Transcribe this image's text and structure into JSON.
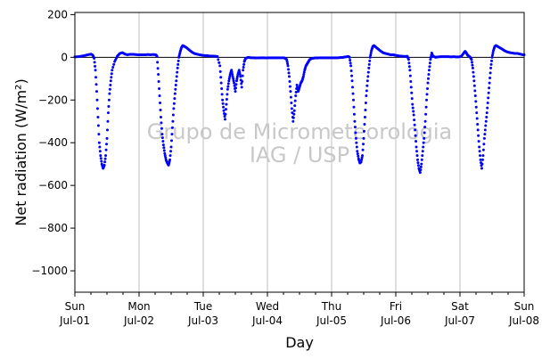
{
  "chart_data": {
    "type": "scatter",
    "xlabel": "Day",
    "ylabel": "Net radiation (W/m²)",
    "x_range_days": [
      0,
      7
    ],
    "ylim": [
      -1100,
      210
    ],
    "yticks": [
      200,
      0,
      -200,
      -400,
      -600,
      -800,
      -1000
    ],
    "ytick_labels": [
      "200",
      "0",
      "−200",
      "−400",
      "−600",
      "−800",
      "−1000"
    ],
    "xticks": [
      {
        "day": 0,
        "line1": "Sun",
        "line2": "Jul-01"
      },
      {
        "day": 1,
        "line1": "Mon",
        "line2": "Jul-02"
      },
      {
        "day": 2,
        "line1": "Tue",
        "line2": "Jul-03"
      },
      {
        "day": 3,
        "line1": "Wed",
        "line2": "Jul-04"
      },
      {
        "day": 4,
        "line1": "Thu",
        "line2": "Jul-05"
      },
      {
        "day": 5,
        "line1": "Fri",
        "line2": "Jul-06"
      },
      {
        "day": 6,
        "line1": "Sat",
        "line2": "Jul-07"
      },
      {
        "day": 7,
        "line1": "Sun",
        "line2": "Jul-08"
      }
    ],
    "grid": "vertical",
    "zero_line": true,
    "marker_color": "#0000ff",
    "watermark": [
      "Grupo de Micrometeorologia",
      "IAG / USP"
    ],
    "series": [
      {
        "points": [
          [
            0.0,
            2
          ],
          [
            0.05,
            3
          ],
          [
            0.1,
            5
          ],
          [
            0.15,
            8
          ],
          [
            0.2,
            12
          ],
          [
            0.25,
            15
          ],
          [
            0.28,
            10
          ],
          [
            0.3,
            -5
          ],
          [
            0.32,
            -60
          ],
          [
            0.34,
            -160
          ],
          [
            0.36,
            -280
          ],
          [
            0.38,
            -400
          ],
          [
            0.4,
            -460
          ],
          [
            0.42,
            -500
          ],
          [
            0.44,
            -520
          ],
          [
            0.46,
            -505
          ],
          [
            0.48,
            -460
          ],
          [
            0.5,
            -380
          ],
          [
            0.52,
            -260
          ],
          [
            0.54,
            -170
          ],
          [
            0.56,
            -110
          ],
          [
            0.58,
            -60
          ],
          [
            0.62,
            -20
          ],
          [
            0.66,
            5
          ],
          [
            0.7,
            18
          ],
          [
            0.74,
            22
          ],
          [
            0.78,
            15
          ],
          [
            0.82,
            12
          ],
          [
            0.86,
            14
          ],
          [
            0.9,
            14
          ],
          [
            0.94,
            13
          ],
          [
            0.98,
            12
          ],
          [
            1.02,
            12
          ],
          [
            1.06,
            12
          ],
          [
            1.1,
            12
          ],
          [
            1.14,
            13
          ],
          [
            1.18,
            12
          ],
          [
            1.22,
            13
          ],
          [
            1.26,
            12
          ],
          [
            1.28,
            5
          ],
          [
            1.3,
            -80
          ],
          [
            1.32,
            -180
          ],
          [
            1.34,
            -280
          ],
          [
            1.36,
            -360
          ],
          [
            1.38,
            -410
          ],
          [
            1.4,
            -450
          ],
          [
            1.42,
            -480
          ],
          [
            1.44,
            -495
          ],
          [
            1.46,
            -505
          ],
          [
            1.48,
            -480
          ],
          [
            1.5,
            -420
          ],
          [
            1.52,
            -330
          ],
          [
            1.54,
            -240
          ],
          [
            1.56,
            -170
          ],
          [
            1.58,
            -110
          ],
          [
            1.6,
            -50
          ],
          [
            1.62,
            0
          ],
          [
            1.64,
            25
          ],
          [
            1.66,
            45
          ],
          [
            1.68,
            55
          ],
          [
            1.7,
            52
          ],
          [
            1.74,
            45
          ],
          [
            1.78,
            35
          ],
          [
            1.82,
            25
          ],
          [
            1.86,
            18
          ],
          [
            1.9,
            15
          ],
          [
            1.94,
            12
          ],
          [
            1.98,
            10
          ],
          [
            2.02,
            8
          ],
          [
            2.06,
            8
          ],
          [
            2.1,
            6
          ],
          [
            2.14,
            6
          ],
          [
            2.18,
            5
          ],
          [
            2.22,
            4
          ],
          [
            2.26,
            -40
          ],
          [
            2.28,
            -120
          ],
          [
            2.3,
            -200
          ],
          [
            2.32,
            -250
          ],
          [
            2.34,
            -290
          ],
          [
            2.36,
            -220
          ],
          [
            2.38,
            -150
          ],
          [
            2.4,
            -110
          ],
          [
            2.42,
            -80
          ],
          [
            2.44,
            -60
          ],
          [
            2.46,
            -90
          ],
          [
            2.48,
            -120
          ],
          [
            2.5,
            -160
          ],
          [
            2.52,
            -110
          ],
          [
            2.54,
            -80
          ],
          [
            2.56,
            -60
          ],
          [
            2.58,
            -90
          ],
          [
            2.6,
            -140
          ],
          [
            2.62,
            -60
          ],
          [
            2.64,
            -20
          ],
          [
            2.66,
            -5
          ],
          [
            2.7,
            0
          ],
          [
            2.74,
            -2
          ],
          [
            2.78,
            -2
          ],
          [
            2.82,
            -3
          ],
          [
            2.86,
            -3
          ],
          [
            2.9,
            -2
          ],
          [
            2.94,
            -2
          ],
          [
            2.98,
            -3
          ],
          [
            3.02,
            -2
          ],
          [
            3.06,
            -2
          ],
          [
            3.1,
            -2
          ],
          [
            3.14,
            -2
          ],
          [
            3.18,
            -2
          ],
          [
            3.22,
            -2
          ],
          [
            3.26,
            -2
          ],
          [
            3.3,
            -10
          ],
          [
            3.32,
            -40
          ],
          [
            3.34,
            -90
          ],
          [
            3.36,
            -160
          ],
          [
            3.38,
            -240
          ],
          [
            3.4,
            -300
          ],
          [
            3.42,
            -250
          ],
          [
            3.44,
            -180
          ],
          [
            3.46,
            -130
          ],
          [
            3.48,
            -160
          ],
          [
            3.5,
            -140
          ],
          [
            3.52,
            -120
          ],
          [
            3.54,
            -110
          ],
          [
            3.56,
            -90
          ],
          [
            3.58,
            -60
          ],
          [
            3.6,
            -40
          ],
          [
            3.62,
            -30
          ],
          [
            3.64,
            -20
          ],
          [
            3.66,
            -10
          ],
          [
            3.7,
            -5
          ],
          [
            3.74,
            -3
          ],
          [
            3.78,
            -3
          ],
          [
            3.82,
            -2
          ],
          [
            3.86,
            -2
          ],
          [
            3.9,
            -2
          ],
          [
            3.94,
            -2
          ],
          [
            3.98,
            -2
          ],
          [
            4.02,
            -2
          ],
          [
            4.06,
            -2
          ],
          [
            4.1,
            -2
          ],
          [
            4.14,
            -1
          ],
          [
            4.18,
            0
          ],
          [
            4.22,
            2
          ],
          [
            4.26,
            4
          ],
          [
            4.28,
            0
          ],
          [
            4.3,
            -40
          ],
          [
            4.32,
            -110
          ],
          [
            4.34,
            -200
          ],
          [
            4.36,
            -300
          ],
          [
            4.38,
            -380
          ],
          [
            4.4,
            -440
          ],
          [
            4.42,
            -475
          ],
          [
            4.44,
            -495
          ],
          [
            4.46,
            -490
          ],
          [
            4.48,
            -460
          ],
          [
            4.5,
            -380
          ],
          [
            4.52,
            -280
          ],
          [
            4.54,
            -180
          ],
          [
            4.56,
            -110
          ],
          [
            4.58,
            -50
          ],
          [
            4.6,
            0
          ],
          [
            4.62,
            30
          ],
          [
            4.64,
            50
          ],
          [
            4.66,
            55
          ],
          [
            4.68,
            50
          ],
          [
            4.72,
            40
          ],
          [
            4.76,
            30
          ],
          [
            4.8,
            22
          ],
          [
            4.84,
            18
          ],
          [
            4.88,
            15
          ],
          [
            4.92,
            12
          ],
          [
            4.96,
            12
          ],
          [
            4.99,
            10
          ],
          [
            5.02,
            8
          ],
          [
            5.06,
            6
          ],
          [
            5.1,
            5
          ],
          [
            5.14,
            4
          ],
          [
            5.18,
            5
          ],
          [
            5.2,
            -10
          ],
          [
            5.22,
            -60
          ],
          [
            5.24,
            -140
          ],
          [
            5.26,
            -220
          ],
          [
            5.28,
            -270
          ],
          [
            5.3,
            -340
          ],
          [
            5.32,
            -420
          ],
          [
            5.34,
            -480
          ],
          [
            5.36,
            -520
          ],
          [
            5.38,
            -540
          ],
          [
            5.4,
            -500
          ],
          [
            5.42,
            -440
          ],
          [
            5.44,
            -380
          ],
          [
            5.46,
            -300
          ],
          [
            5.48,
            -200
          ],
          [
            5.5,
            -120
          ],
          [
            5.52,
            -60
          ],
          [
            5.54,
            -10
          ],
          [
            5.56,
            20
          ],
          [
            5.58,
            5
          ],
          [
            5.62,
            0
          ],
          [
            5.66,
            2
          ],
          [
            5.7,
            3
          ],
          [
            5.74,
            3
          ],
          [
            5.78,
            3
          ],
          [
            5.82,
            3
          ],
          [
            5.86,
            2
          ],
          [
            5.9,
            3
          ],
          [
            5.94,
            2
          ],
          [
            5.98,
            2
          ],
          [
            6.02,
            5
          ],
          [
            6.06,
            20
          ],
          [
            6.08,
            28
          ],
          [
            6.1,
            20
          ],
          [
            6.12,
            10
          ],
          [
            6.14,
            5
          ],
          [
            6.16,
            0
          ],
          [
            6.18,
            -10
          ],
          [
            6.2,
            -50
          ],
          [
            6.22,
            -110
          ],
          [
            6.24,
            -180
          ],
          [
            6.26,
            -260
          ],
          [
            6.28,
            -340
          ],
          [
            6.3,
            -420
          ],
          [
            6.32,
            -480
          ],
          [
            6.34,
            -520
          ],
          [
            6.36,
            -460
          ],
          [
            6.38,
            -380
          ],
          [
            6.4,
            -320
          ],
          [
            6.42,
            -260
          ],
          [
            6.44,
            -190
          ],
          [
            6.46,
            -120
          ],
          [
            6.48,
            -50
          ],
          [
            6.5,
            0
          ],
          [
            6.52,
            30
          ],
          [
            6.54,
            50
          ],
          [
            6.56,
            55
          ],
          [
            6.58,
            52
          ],
          [
            6.62,
            45
          ],
          [
            6.66,
            38
          ],
          [
            6.7,
            30
          ],
          [
            6.74,
            25
          ],
          [
            6.78,
            22
          ],
          [
            6.82,
            20
          ],
          [
            6.86,
            18
          ],
          [
            6.9,
            18
          ],
          [
            6.94,
            15
          ],
          [
            6.98,
            12
          ],
          [
            7.0,
            12
          ]
        ]
      }
    ]
  }
}
